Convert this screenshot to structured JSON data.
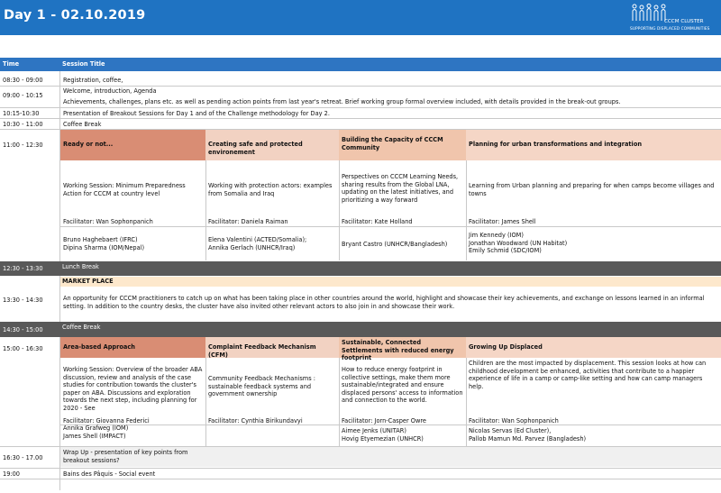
{
  "banner": {
    "title": "Day 1 - 02.10.2019",
    "logo_line1": "CCCM CLUSTER",
    "logo_line2": "SUPPORTING DISPLACED COMMUNITIES",
    "logo_icon": "people-silhouettes-icon"
  },
  "header": {
    "time": "Time",
    "session": "Session Title"
  },
  "rows": [
    {
      "time": "08:30 - 09:00",
      "title": "Registration, coffee,"
    },
    {
      "time": "09:00 - 10:15",
      "title": "Welcome, introduction, Agenda",
      "title2": "Achievements, challenges, plans etc. as well as pending action points from last year's retreat. Brief working group formal overview included, with details provided in the break-out groups."
    },
    {
      "time": "10:15-10:30",
      "title": "Presentation of Breakout Sessions for Day 1 and of the Challenge methodology for Day 2."
    },
    {
      "time": "10:30 - 11:00",
      "title": "Coffee Break"
    }
  ],
  "block1": {
    "time": "11:00 - 12:30",
    "headers": [
      "Ready or not...",
      "Creating safe and protected environement",
      "Building the Capacity of CCCM Community",
      "Planning for urban transformations and integration"
    ],
    "descs": [
      "Working Session: Minimum Preparedness Action for CCCM at country level",
      "Working with protection actors: examples from Somalia and Iraq",
      "Perspectives on CCCM Learning Needs, sharing results from the Global LNA, updating on the latest initiatives, and prioritizing a way forward",
      "Learning from Urban planning and preparing for when camps become villages and towns"
    ],
    "facilitators": [
      "Facilitator: Wan Sophonpanich",
      "Facilitator: Daniela Raiman",
      "Facilitator: Kate Holland",
      "Facilitator: James Shell"
    ],
    "speakers": [
      "Bruno Haghebaert (IFRC)\nDipina Sharma (IOM/Nepal)",
      "Elena Valentini (ACTED/Somalia);\nAnnika Gerlach (UNHCR/Iraq)",
      "Bryant Castro (UNHCR/Bangladesh)",
      "Jim Kennedy (IOM)\nJonathan Woodward (UN Habitat)\nEmily Schmid (SDC/IOM)"
    ]
  },
  "lunch": {
    "time": "12:30 - 13:30",
    "title": "Lunch Break"
  },
  "market": {
    "time": "13:30 - 14:30",
    "title": "MARKET PLACE",
    "desc": "An opportunity for CCCM practitioners to catch up on what has been taking place in other countries around the world, highlight and showcase their key achievements, and exchange on lessons learned in an informal setting. In addition to the country desks, the cluster have also invited other relevant actors to also join in and showcase their work."
  },
  "coffee2": {
    "time": "14:30 - 15:00",
    "title": "Coffee Break"
  },
  "block2": {
    "time": "15:00 - 16:30",
    "headers": [
      "Area-based Approach",
      "Complaint Feedback Mechanism (CFM)",
      "Sustainable, Connected Settlements with reduced energy footprint",
      "Growing Up Displaced"
    ],
    "descs": [
      "Working Session: Overview of the broader ABA discussion, review and analysis of the case studies for contribution towards the cluster's paper on ABA. Discussions and exploration towards the next step, including planning for 2020 - See",
      "Community Feedback Mechanisms : sustainable feedback systems and government ownership",
      "How to reduce energy footprint in collective settings, make them more sustainable/integrated and ensure displaced persons' access to information and connection to the world.",
      "Children are the most impacted by displacement. This session looks at how can childhood development be enhanced, activities that contribute to a happier experience of life in a camp or camp-like setting and how can camp managers help."
    ],
    "facilitators": [
      "Facilitator: Giovanna Federici",
      "Facilitator: Cynthia Birikundavyi",
      "Facilitator: Jorn-Casper Owre",
      "Facilitator: Wan Sophonpanich"
    ],
    "speakers": [
      "Annika Grafweg (IOM)\nJames Shell (IMPACT)",
      "",
      "Aimee Jenks (UNITAR)\nHovig Etyemezian (UNHCR)",
      "Nicolas Servas (Ed Cluster),\nPallob Mamun Md. Parvez (Bangladesh)"
    ]
  },
  "wrapup": {
    "time": "16:30 - 17.00",
    "title": "Wrap Up - presentation of key points from breakout sessions?"
  },
  "social": {
    "time": "19:00",
    "title": "Bains des Pâquis - Social event"
  }
}
